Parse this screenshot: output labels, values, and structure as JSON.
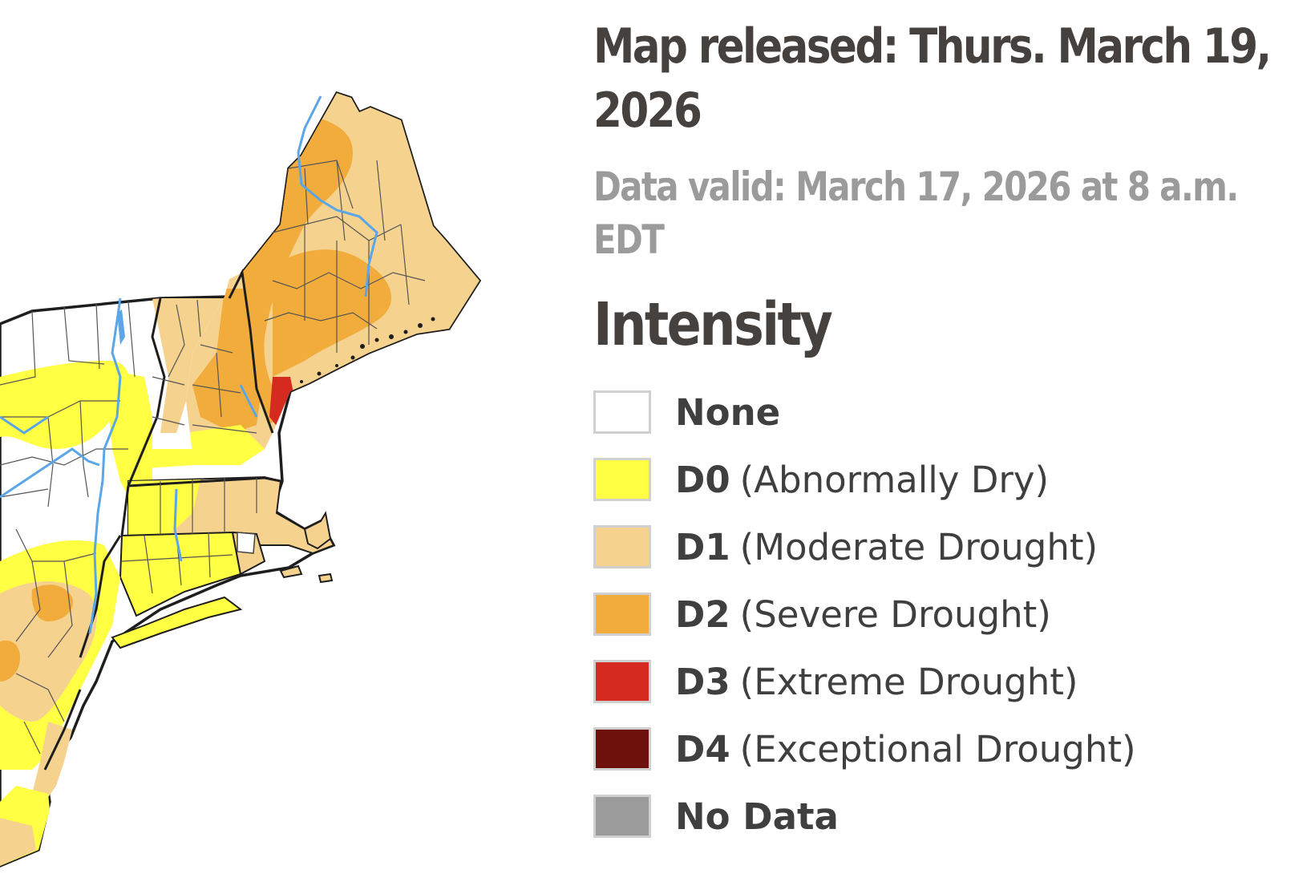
{
  "header": {
    "released": "Map released: Thurs. March 19, 2026",
    "valid": "Data valid: March 17, 2026 at 8 a.m. EDT"
  },
  "legend": {
    "title": "Intensity",
    "items": [
      {
        "code": "None",
        "desc": "",
        "color": "#ffffff"
      },
      {
        "code": "D0",
        "desc": "(Abnormally Dry)",
        "color": "#ffff44"
      },
      {
        "code": "D1",
        "desc": "(Moderate Drought)",
        "color": "#f6d28f"
      },
      {
        "code": "D2",
        "desc": "(Severe Drought)",
        "color": "#f2ac3c"
      },
      {
        "code": "D3",
        "desc": "(Extreme Drought)",
        "color": "#d52a20"
      },
      {
        "code": "D4",
        "desc": "(Exceptional Drought)",
        "color": "#6e110c"
      },
      {
        "code": "No Data",
        "desc": "",
        "color": "#9b9b9b"
      }
    ]
  },
  "map": {
    "region": "Northeast United States drought conditions",
    "colors": {
      "none": "#ffffff",
      "d0": "#ffff44",
      "d1": "#f6d28f",
      "d2": "#f2ac3c",
      "d3": "#d52a20",
      "border": "#222222",
      "county": "#666666",
      "river": "#5aa6e6"
    }
  }
}
